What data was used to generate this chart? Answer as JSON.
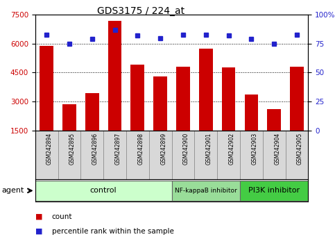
{
  "title": "GDS3175 / 224_at",
  "samples": [
    "GSM242894",
    "GSM242895",
    "GSM242896",
    "GSM242897",
    "GSM242898",
    "GSM242899",
    "GSM242900",
    "GSM242901",
    "GSM242902",
    "GSM242903",
    "GSM242904",
    "GSM242905"
  ],
  "counts": [
    5900,
    2850,
    3450,
    7200,
    4900,
    4300,
    4800,
    5750,
    4750,
    3350,
    2600,
    4800
  ],
  "percentile_ranks": [
    83,
    75,
    79,
    87,
    82,
    80,
    83,
    83,
    82,
    79,
    75,
    83
  ],
  "bar_color": "#cc0000",
  "dot_color": "#2222cc",
  "ylim_left": [
    1500,
    7500
  ],
  "yticks_left": [
    1500,
    3000,
    4500,
    6000,
    7500
  ],
  "ylim_right": [
    0,
    100
  ],
  "yticks_right": [
    0,
    25,
    50,
    75,
    100
  ],
  "yticklabels_right": [
    "0",
    "25",
    "50",
    "75",
    "100%"
  ],
  "groups": [
    {
      "label": "control",
      "start": 0,
      "end": 6,
      "color": "#ccffcc"
    },
    {
      "label": "NF-kappaB inhibitor",
      "start": 6,
      "end": 9,
      "color": "#99dd99"
    },
    {
      "label": "PI3K inhibitor",
      "start": 9,
      "end": 12,
      "color": "#44cc44"
    }
  ],
  "agent_label": "agent",
  "legend_count_label": "count",
  "legend_pct_label": "percentile rank within the sample",
  "bar_color_label": "#cc0000",
  "dot_color_label": "#2222cc"
}
